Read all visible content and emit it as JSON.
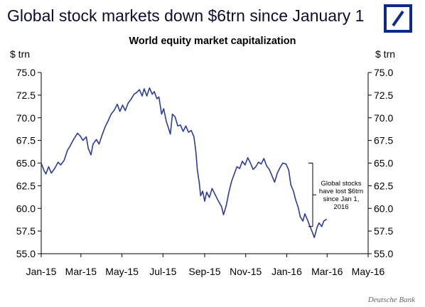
{
  "headline": "Global stock markets down $6trn since January 1",
  "source": "Deutsche Bank",
  "logo": {
    "icon": "deutsche-bank-slash-logo-icon",
    "color": "#0b2a8a"
  },
  "chart_data": {
    "type": "line",
    "title": "World equity market capitalization",
    "ylabel_left": "$ trn",
    "ylabel_right": "$ trn",
    "ylim": [
      55.0,
      75.0
    ],
    "yticks": [
      "75.0",
      "72.5",
      "70.0",
      "67.5",
      "65.0",
      "62.5",
      "60.0",
      "57.5",
      "55.0"
    ],
    "xlim": [
      "2015-01-01",
      "2016-05-01"
    ],
    "xticks": [
      {
        "label": "Jan-15",
        "date": "2015-01-01"
      },
      {
        "label": "Mar-15",
        "date": "2015-03-01"
      },
      {
        "label": "May-15",
        "date": "2015-05-01"
      },
      {
        "label": "Jul-15",
        "date": "2015-07-01"
      },
      {
        "label": "Sep-15",
        "date": "2015-09-01"
      },
      {
        "label": "Nov-15",
        "date": "2015-11-01"
      },
      {
        "label": "Jan-16",
        "date": "2016-01-01"
      },
      {
        "label": "Mar-16",
        "date": "2016-03-01"
      },
      {
        "label": "May-16",
        "date": "2016-05-01"
      }
    ],
    "line_color": "#2b3aa6",
    "grid": false,
    "series": [
      {
        "points": [
          [
            "2015-01-01",
            65.0
          ],
          [
            "2015-01-05",
            64.2
          ],
          [
            "2015-01-08",
            63.8
          ],
          [
            "2015-01-12",
            64.6
          ],
          [
            "2015-01-16",
            63.9
          ],
          [
            "2015-01-21",
            64.4
          ],
          [
            "2015-01-26",
            65.1
          ],
          [
            "2015-01-30",
            64.8
          ],
          [
            "2015-02-04",
            65.3
          ],
          [
            "2015-02-09",
            66.4
          ],
          [
            "2015-02-13",
            66.9
          ],
          [
            "2015-02-18",
            67.6
          ],
          [
            "2015-02-24",
            68.3
          ],
          [
            "2015-02-28",
            68.0
          ],
          [
            "2015-03-04",
            67.5
          ],
          [
            "2015-03-09",
            67.9
          ],
          [
            "2015-03-12",
            66.6
          ],
          [
            "2015-03-16",
            65.9
          ],
          [
            "2015-03-19",
            67.1
          ],
          [
            "2015-03-24",
            67.6
          ],
          [
            "2015-03-28",
            67.1
          ],
          [
            "2015-04-01",
            68.0
          ],
          [
            "2015-04-06",
            69.0
          ],
          [
            "2015-04-10",
            69.6
          ],
          [
            "2015-04-15",
            70.4
          ],
          [
            "2015-04-20",
            70.9
          ],
          [
            "2015-04-24",
            71.5
          ],
          [
            "2015-04-28",
            70.7
          ],
          [
            "2015-05-02",
            71.4
          ],
          [
            "2015-05-06",
            70.8
          ],
          [
            "2015-05-10",
            71.6
          ],
          [
            "2015-05-14",
            72.0
          ],
          [
            "2015-05-19",
            72.6
          ],
          [
            "2015-05-23",
            72.8
          ],
          [
            "2015-05-27",
            73.1
          ],
          [
            "2015-05-31",
            72.4
          ],
          [
            "2015-06-03",
            73.2
          ],
          [
            "2015-06-07",
            72.4
          ],
          [
            "2015-06-11",
            73.3
          ],
          [
            "2015-06-15",
            72.6
          ],
          [
            "2015-06-18",
            72.9
          ],
          [
            "2015-06-22",
            72.1
          ],
          [
            "2015-06-25",
            72.3
          ],
          [
            "2015-06-29",
            70.4
          ],
          [
            "2015-07-02",
            71.0
          ],
          [
            "2015-07-06",
            69.6
          ],
          [
            "2015-07-09",
            68.9
          ],
          [
            "2015-07-12",
            68.2
          ],
          [
            "2015-07-15",
            70.4
          ],
          [
            "2015-07-19",
            70.1
          ],
          [
            "2015-07-23",
            69.1
          ],
          [
            "2015-07-27",
            69.2
          ],
          [
            "2015-07-31",
            68.5
          ],
          [
            "2015-08-04",
            69.1
          ],
          [
            "2015-08-08",
            68.4
          ],
          [
            "2015-08-12",
            68.6
          ],
          [
            "2015-08-16",
            67.9
          ],
          [
            "2015-08-19",
            66.2
          ],
          [
            "2015-08-21",
            64.3
          ],
          [
            "2015-08-24",
            62.8
          ],
          [
            "2015-08-26",
            61.4
          ],
          [
            "2015-08-29",
            61.9
          ],
          [
            "2015-09-01",
            60.8
          ],
          [
            "2015-09-04",
            61.8
          ],
          [
            "2015-09-08",
            61.2
          ],
          [
            "2015-09-12",
            62.2
          ],
          [
            "2015-09-16",
            61.6
          ],
          [
            "2015-09-20",
            61.0
          ],
          [
            "2015-09-23",
            60.6
          ],
          [
            "2015-09-26",
            60.2
          ],
          [
            "2015-09-29",
            59.3
          ],
          [
            "2015-10-03",
            60.3
          ],
          [
            "2015-10-07",
            61.8
          ],
          [
            "2015-10-11",
            63.0
          ],
          [
            "2015-10-15",
            63.8
          ],
          [
            "2015-10-19",
            64.6
          ],
          [
            "2015-10-23",
            64.4
          ],
          [
            "2015-10-27",
            65.2
          ],
          [
            "2015-10-31",
            64.8
          ],
          [
            "2015-11-04",
            65.6
          ],
          [
            "2015-11-08",
            65.0
          ],
          [
            "2015-11-12",
            64.3
          ],
          [
            "2015-11-16",
            64.6
          ],
          [
            "2015-11-20",
            65.1
          ],
          [
            "2015-11-24",
            64.9
          ],
          [
            "2015-11-28",
            65.5
          ],
          [
            "2015-12-02",
            64.7
          ],
          [
            "2015-12-06",
            64.3
          ],
          [
            "2015-12-10",
            63.6
          ],
          [
            "2015-12-14",
            62.9
          ],
          [
            "2015-12-18",
            63.9
          ],
          [
            "2015-12-22",
            64.5
          ],
          [
            "2015-12-26",
            65.0
          ],
          [
            "2015-12-31",
            64.9
          ],
          [
            "2016-01-04",
            64.2
          ],
          [
            "2016-01-07",
            62.6
          ],
          [
            "2016-01-11",
            61.9
          ],
          [
            "2016-01-14",
            61.0
          ],
          [
            "2016-01-18",
            60.1
          ],
          [
            "2016-01-21",
            59.1
          ],
          [
            "2016-01-25",
            58.6
          ],
          [
            "2016-01-28",
            59.4
          ],
          [
            "2016-02-01",
            58.7
          ],
          [
            "2016-02-04",
            58.1
          ],
          [
            "2016-02-08",
            57.4
          ],
          [
            "2016-02-11",
            56.8
          ],
          [
            "2016-02-15",
            57.9
          ],
          [
            "2016-02-18",
            58.4
          ],
          [
            "2016-02-22",
            58.0
          ],
          [
            "2016-02-25",
            58.6
          ],
          [
            "2016-02-29",
            58.8
          ]
        ]
      }
    ],
    "annotation": {
      "text": "Global stocks have lost $6trn since Jan 1, 2016",
      "bracket_from": 65.0,
      "bracket_to": 58.0
    }
  }
}
